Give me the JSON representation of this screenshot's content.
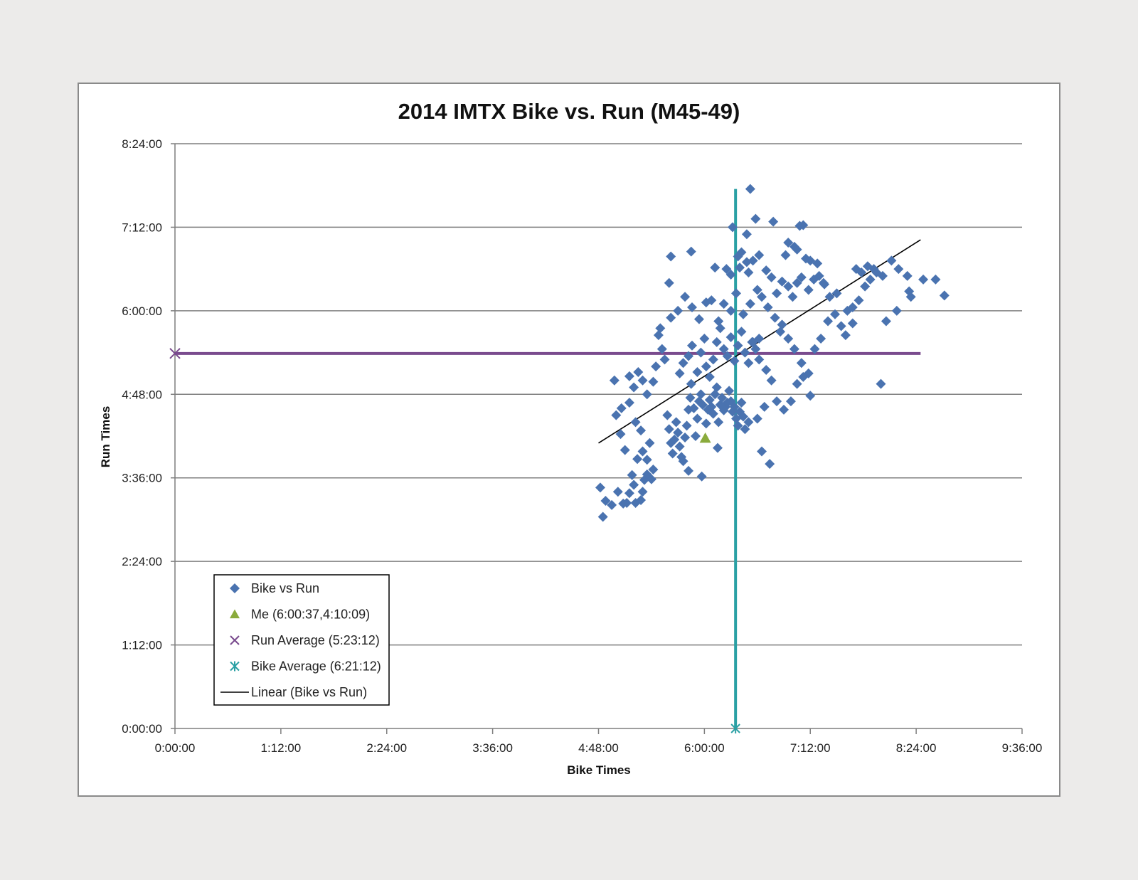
{
  "chart_data": {
    "type": "scatter",
    "title": "2014 IMTX Bike vs. Run (M45-49)",
    "xlabel": "Bike Times",
    "ylabel": "Run Times",
    "x_unit": "hours",
    "y_unit": "hours",
    "xlim": [
      0,
      9.6
    ],
    "ylim": [
      0,
      8.4
    ],
    "x_ticks": [
      0,
      1.2,
      2.4,
      3.6,
      4.8,
      6.0,
      7.2,
      8.4,
      9.6
    ],
    "x_tick_labels": [
      "0:00:00",
      "1:12:00",
      "2:24:00",
      "3:36:00",
      "4:48:00",
      "6:00:00",
      "7:12:00",
      "8:24:00",
      "9:36:00"
    ],
    "y_ticks": [
      0,
      1.2,
      2.4,
      3.6,
      4.8,
      6.0,
      7.2,
      8.4
    ],
    "y_tick_labels": [
      "0:00:00",
      "1:12:00",
      "2:24:00",
      "3:36:00",
      "4:48:00",
      "6:00:00",
      "7:12:00",
      "8:24:00"
    ],
    "grid": "horizontal",
    "legend_position": "bottom-left",
    "legend": [
      {
        "label": "Bike vs Run",
        "marker": "diamond",
        "color": "#4a73b0"
      },
      {
        "label": "Me (6:00:37,4:10:09)",
        "marker": "triangle",
        "color": "#8aab3c"
      },
      {
        "label": "Run Average (5:23:12)",
        "marker": "x",
        "color": "#7a4b8e"
      },
      {
        "label": "Bike Average (6:21:12)",
        "marker": "asterisk",
        "color": "#2aa0a4"
      },
      {
        "label": "Linear (Bike vs Run)",
        "marker": "line",
        "color": "#000000"
      }
    ],
    "series": [
      {
        "name": "Bike vs Run",
        "color": "#4a73b0",
        "points": [
          [
            4.82,
            3.46
          ],
          [
            4.85,
            3.04
          ],
          [
            4.88,
            3.27
          ],
          [
            4.95,
            3.21
          ],
          [
            5.02,
            3.4
          ],
          [
            5.08,
            3.23
          ],
          [
            5.12,
            3.24
          ],
          [
            5.15,
            3.38
          ],
          [
            5.2,
            3.5
          ],
          [
            5.22,
            3.24
          ],
          [
            5.28,
            3.28
          ],
          [
            5.3,
            3.4
          ],
          [
            5.32,
            3.57
          ],
          [
            5.35,
            3.65
          ],
          [
            5.4,
            3.58
          ],
          [
            5.42,
            3.72
          ],
          [
            5.18,
            3.64
          ],
          [
            5.24,
            3.87
          ],
          [
            5.3,
            3.98
          ],
          [
            5.35,
            3.86
          ],
          [
            5.05,
            4.23
          ],
          [
            5.1,
            4.0
          ],
          [
            5.28,
            4.28
          ],
          [
            5.38,
            4.1
          ],
          [
            5.0,
            4.5
          ],
          [
            5.06,
            4.6
          ],
          [
            5.15,
            4.68
          ],
          [
            5.22,
            4.4
          ],
          [
            4.98,
            5.0
          ],
          [
            5.15,
            5.06
          ],
          [
            5.25,
            5.12
          ],
          [
            5.3,
            5.0
          ],
          [
            5.2,
            4.9
          ],
          [
            5.35,
            4.8
          ],
          [
            5.42,
            4.98
          ],
          [
            5.45,
            5.2
          ],
          [
            5.48,
            5.65
          ],
          [
            5.5,
            5.75
          ],
          [
            5.52,
            5.45
          ],
          [
            5.55,
            5.3
          ],
          [
            5.58,
            4.5
          ],
          [
            5.6,
            4.3
          ],
          [
            5.62,
            4.1
          ],
          [
            5.64,
            3.95
          ],
          [
            5.66,
            4.15
          ],
          [
            5.68,
            4.4
          ],
          [
            5.7,
            4.25
          ],
          [
            5.72,
            4.05
          ],
          [
            5.74,
            3.9
          ],
          [
            5.76,
            3.84
          ],
          [
            5.78,
            4.18
          ],
          [
            5.8,
            4.35
          ],
          [
            5.82,
            4.58
          ],
          [
            5.84,
            4.75
          ],
          [
            5.85,
            4.95
          ],
          [
            5.88,
            4.6
          ],
          [
            5.9,
            4.2
          ],
          [
            5.92,
            4.45
          ],
          [
            5.94,
            4.7
          ],
          [
            5.96,
            4.8
          ],
          [
            5.98,
            4.65
          ],
          [
            5.82,
            3.7
          ],
          [
            5.97,
            3.62
          ],
          [
            6.02,
            4.38
          ],
          [
            6.04,
            4.58
          ],
          [
            6.06,
            4.72
          ],
          [
            6.08,
            4.62
          ],
          [
            6.1,
            4.52
          ],
          [
            6.12,
            4.8
          ],
          [
            6.14,
            4.9
          ],
          [
            6.16,
            4.4
          ],
          [
            6.18,
            4.65
          ],
          [
            6.2,
            4.75
          ],
          [
            6.22,
            4.57
          ],
          [
            6.24,
            4.62
          ],
          [
            6.26,
            4.68
          ],
          [
            6.28,
            4.85
          ],
          [
            6.3,
            4.7
          ],
          [
            6.32,
            4.55
          ],
          [
            6.34,
            4.62
          ],
          [
            6.36,
            4.45
          ],
          [
            6.38,
            4.35
          ],
          [
            6.4,
            4.55
          ],
          [
            6.42,
            4.68
          ],
          [
            6.44,
            4.48
          ],
          [
            6.46,
            4.3
          ],
          [
            6.15,
            4.03
          ],
          [
            6.5,
            4.4
          ],
          [
            5.72,
            5.1
          ],
          [
            5.76,
            5.25
          ],
          [
            5.82,
            5.35
          ],
          [
            5.86,
            5.5
          ],
          [
            5.92,
            5.12
          ],
          [
            5.96,
            5.4
          ],
          [
            6.0,
            5.6
          ],
          [
            6.02,
            5.2
          ],
          [
            6.06,
            5.05
          ],
          [
            6.1,
            5.3
          ],
          [
            6.14,
            5.55
          ],
          [
            6.18,
            5.75
          ],
          [
            6.22,
            5.45
          ],
          [
            6.26,
            5.35
          ],
          [
            6.3,
            5.62
          ],
          [
            6.34,
            5.28
          ],
          [
            6.38,
            5.5
          ],
          [
            6.42,
            5.7
          ],
          [
            6.46,
            5.4
          ],
          [
            6.5,
            5.25
          ],
          [
            6.54,
            5.55
          ],
          [
            6.58,
            5.45
          ],
          [
            6.62,
            5.6
          ],
          [
            5.62,
            5.9
          ],
          [
            5.7,
            6.0
          ],
          [
            5.78,
            6.2
          ],
          [
            5.86,
            6.05
          ],
          [
            5.94,
            5.88
          ],
          [
            6.02,
            6.12
          ],
          [
            6.08,
            6.15
          ],
          [
            6.16,
            5.85
          ],
          [
            6.22,
            6.1
          ],
          [
            6.3,
            6.0
          ],
          [
            6.36,
            6.25
          ],
          [
            6.44,
            5.95
          ],
          [
            6.52,
            6.1
          ],
          [
            6.6,
            6.3
          ],
          [
            5.6,
            6.4
          ],
          [
            5.62,
            6.78
          ],
          [
            5.85,
            6.85
          ],
          [
            6.12,
            6.62
          ],
          [
            6.25,
            6.6
          ],
          [
            6.3,
            6.52
          ],
          [
            6.38,
            6.78
          ],
          [
            6.42,
            6.84
          ],
          [
            6.48,
            6.7
          ],
          [
            6.55,
            6.72
          ],
          [
            6.62,
            6.8
          ],
          [
            6.7,
            6.58
          ],
          [
            6.76,
            6.48
          ],
          [
            6.82,
            6.25
          ],
          [
            6.88,
            6.42
          ],
          [
            6.95,
            6.35
          ],
          [
            7.0,
            6.2
          ],
          [
            7.05,
            6.4
          ],
          [
            7.1,
            6.48
          ],
          [
            7.18,
            6.3
          ],
          [
            7.24,
            6.45
          ],
          [
            7.3,
            6.5
          ],
          [
            7.36,
            6.38
          ],
          [
            7.42,
            6.2
          ],
          [
            7.5,
            6.25
          ],
          [
            6.32,
            7.2
          ],
          [
            6.48,
            7.1
          ],
          [
            6.58,
            7.32
          ],
          [
            6.78,
            7.28
          ],
          [
            7.08,
            7.22
          ],
          [
            7.12,
            7.23
          ],
          [
            6.95,
            6.98
          ],
          [
            7.02,
            6.92
          ],
          [
            7.15,
            6.75
          ],
          [
            6.52,
            7.75
          ],
          [
            6.4,
            6.62
          ],
          [
            6.5,
            6.55
          ],
          [
            6.65,
            6.2
          ],
          [
            6.72,
            6.05
          ],
          [
            6.8,
            5.9
          ],
          [
            6.88,
            5.8
          ],
          [
            6.95,
            5.6
          ],
          [
            7.02,
            5.45
          ],
          [
            7.1,
            5.25
          ],
          [
            7.18,
            5.1
          ],
          [
            7.25,
            5.45
          ],
          [
            7.32,
            5.6
          ],
          [
            7.4,
            5.85
          ],
          [
            7.48,
            5.95
          ],
          [
            7.55,
            5.78
          ],
          [
            7.6,
            5.65
          ],
          [
            7.68,
            6.05
          ],
          [
            7.75,
            6.15
          ],
          [
            7.82,
            6.35
          ],
          [
            7.88,
            6.45
          ],
          [
            7.95,
            6.55
          ],
          [
            6.55,
            5.55
          ],
          [
            6.62,
            5.3
          ],
          [
            6.7,
            5.15
          ],
          [
            6.76,
            5.0
          ],
          [
            6.82,
            4.7
          ],
          [
            6.9,
            4.58
          ],
          [
            6.98,
            4.7
          ],
          [
            7.05,
            4.95
          ],
          [
            7.12,
            5.05
          ],
          [
            7.2,
            4.78
          ],
          [
            6.68,
            4.62
          ],
          [
            6.6,
            4.45
          ],
          [
            6.65,
            3.98
          ],
          [
            6.74,
            3.8
          ],
          [
            7.68,
            5.82
          ],
          [
            7.72,
            6.6
          ],
          [
            7.78,
            6.55
          ],
          [
            7.85,
            6.64
          ],
          [
            7.92,
            6.6
          ],
          [
            8.02,
            6.5
          ],
          [
            8.12,
            6.72
          ],
          [
            8.2,
            6.6
          ],
          [
            8.3,
            6.5
          ],
          [
            8.48,
            6.45
          ],
          [
            8.18,
            6.0
          ],
          [
            8.06,
            5.85
          ],
          [
            8.32,
            6.28
          ],
          [
            8.34,
            6.2
          ],
          [
            8.62,
            6.45
          ],
          [
            8.72,
            6.22
          ],
          [
            8.0,
            4.95
          ],
          [
            6.92,
            6.8
          ],
          [
            7.05,
            6.88
          ],
          [
            7.2,
            6.72
          ],
          [
            7.28,
            6.68
          ],
          [
            7.35,
            6.4
          ],
          [
            7.62,
            6.0
          ],
          [
            6.86,
            5.7
          ]
        ]
      },
      {
        "name": "Me (6:00:37,4:10:09)",
        "color": "#8aab3c",
        "points": [
          [
            6.01,
            4.17
          ]
        ]
      },
      {
        "name": "Run Average (5:23:12)",
        "color": "#7a4b8e",
        "x_range": [
          0,
          8.45
        ],
        "y": 5.387
      },
      {
        "name": "Bike Average (6:21:12)",
        "color": "#2aa0a4",
        "x": 6.353,
        "y_range": [
          0,
          7.75
        ]
      },
      {
        "name": "Linear (Bike vs Run)",
        "color": "#000000",
        "x_range": [
          4.8,
          8.45
        ],
        "y_range": [
          4.1,
          7.02
        ]
      }
    ]
  }
}
